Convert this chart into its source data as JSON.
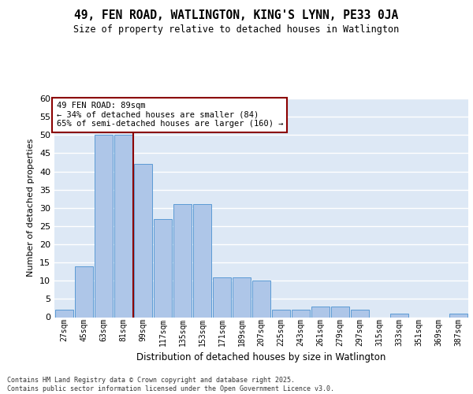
{
  "title_line1": "49, FEN ROAD, WATLINGTON, KING'S LYNN, PE33 0JA",
  "title_line2": "Size of property relative to detached houses in Watlington",
  "xlabel": "Distribution of detached houses by size in Watlington",
  "ylabel": "Number of detached properties",
  "bar_values": [
    2,
    14,
    50,
    50,
    42,
    27,
    31,
    31,
    11,
    11,
    10,
    2,
    2,
    3,
    3,
    2,
    0,
    1,
    0,
    0,
    1
  ],
  "bin_labels": [
    "27sqm",
    "45sqm",
    "63sqm",
    "81sqm",
    "99sqm",
    "117sqm",
    "135sqm",
    "153sqm",
    "171sqm",
    "189sqm",
    "207sqm",
    "225sqm",
    "243sqm",
    "261sqm",
    "279sqm",
    "297sqm",
    "315sqm",
    "333sqm",
    "351sqm",
    "369sqm",
    "387sqm"
  ],
  "bar_color": "#aec6e8",
  "bar_edge_color": "#5b9bd5",
  "background_color": "#dde8f5",
  "grid_color": "#ffffff",
  "vline_x": 3.5,
  "vline_color": "#8b0000",
  "annotation_text": "49 FEN ROAD: 89sqm\n← 34% of detached houses are smaller (84)\n65% of semi-detached houses are larger (160) →",
  "annotation_box_color": "#8b0000",
  "annotation_box_facecolor": "#ffffff",
  "footer_text": "Contains HM Land Registry data © Crown copyright and database right 2025.\nContains public sector information licensed under the Open Government Licence v3.0.",
  "ylim": [
    0,
    60
  ],
  "yticks": [
    0,
    5,
    10,
    15,
    20,
    25,
    30,
    35,
    40,
    45,
    50,
    55,
    60
  ]
}
